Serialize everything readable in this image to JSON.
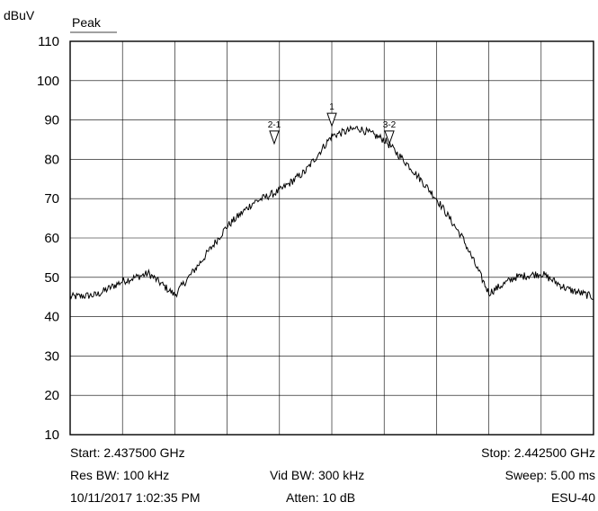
{
  "chart_data": {
    "type": "line",
    "ylabel": "dBuV",
    "trace_label": "Peak",
    "ylim": [
      10,
      110
    ],
    "yticks": [
      10,
      20,
      30,
      40,
      50,
      60,
      70,
      80,
      90,
      100,
      110
    ],
    "xlim": [
      2.4375,
      2.4425
    ],
    "x_divisions": 10,
    "grid": true,
    "series": [
      {
        "x": [
          2.4375,
          2.43775,
          2.438,
          2.43825,
          2.4385,
          2.43875,
          2.439,
          2.43925,
          2.4395,
          2.43975,
          2.44,
          2.44025,
          2.4405,
          2.44075,
          2.441,
          2.44125,
          2.4415,
          2.44175,
          2.442,
          2.44225,
          2.4425
        ],
        "values": [
          45,
          45.5,
          49,
          51,
          45.5,
          54,
          63,
          69,
          72,
          77,
          86,
          88,
          85,
          78,
          70,
          60,
          46,
          50,
          51,
          47,
          45
        ]
      }
    ],
    "markers": [
      {
        "label": "1",
        "x": 2.44,
        "y": 88.5
      },
      {
        "label": "2-1",
        "x": 2.43945,
        "y": 84
      },
      {
        "label": "3-2",
        "x": 2.44055,
        "y": 84
      }
    ]
  },
  "footer": {
    "start": "Start: 2.437500 GHz",
    "stop": "Stop: 2.442500 GHz",
    "res_bw": "Res BW: 100 kHz",
    "vid_bw": "Vid BW: 300 kHz",
    "sweep": "Sweep: 5.00 ms",
    "timestamp": "10/11/2017 1:02:35 PM",
    "atten": "Atten: 10 dB",
    "instrument": "ESU-40"
  }
}
